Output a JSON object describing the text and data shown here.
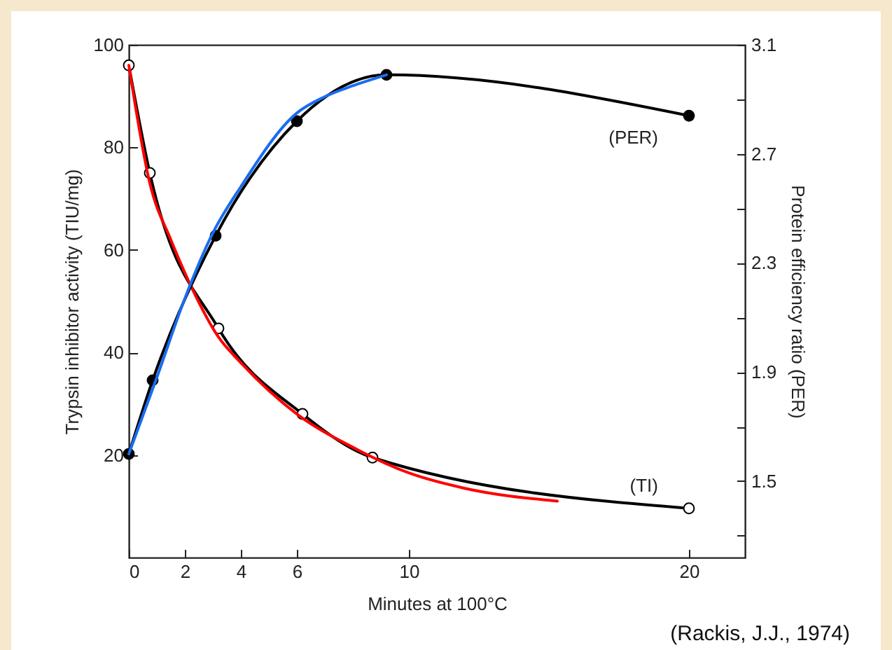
{
  "chart_data": {
    "type": "line",
    "xlabel": "Minutes at 100°C",
    "ylabel": "Trypsin inhibitor activity (TIU/mg)",
    "y2label": "Protein efficiency ratio (PER)",
    "xlim": [
      0,
      22
    ],
    "xticks": [
      0,
      2,
      4,
      6,
      10,
      20
    ],
    "ylim": [
      0,
      100
    ],
    "yticks": [
      20,
      40,
      60,
      80,
      100
    ],
    "y2lim": [
      1.22,
      3.1
    ],
    "y2ticks": [
      {
        "value": 1.3,
        "label": null
      },
      1.5,
      {
        "value": 1.7,
        "label": null
      },
      1.9,
      {
        "value": 2.1,
        "label": null
      },
      2.3,
      {
        "value": 2.5,
        "label": null
      },
      2.7,
      {
        "value": 2.9,
        "label": null
      },
      3.1
    ],
    "grid": false,
    "legend": false,
    "series": [
      {
        "name": "(TI)",
        "color": "#000000",
        "marker": "circle",
        "axis": "y",
        "x": [
          0,
          0.75,
          3.2,
          6.2,
          8.7,
          20
        ],
        "values": [
          96,
          75,
          44.7,
          28,
          19.5,
          9.6
        ]
      },
      {
        "name": "(PER)",
        "color": "#000000",
        "marker": "circle",
        "axis": "y2",
        "x": [
          0,
          0.85,
          3.1,
          6,
          9.2,
          20
        ],
        "values": [
          1.6,
          1.87,
          2.4,
          2.82,
          2.99,
          2.84
        ]
      },
      {
        "color": "#ff0000",
        "marker": "none",
        "axis": "y",
        "x": [
          0,
          0.75,
          1.5,
          2.3,
          3.2,
          4,
          6,
          8,
          10,
          12,
          15.3
        ],
        "values": [
          96,
          73,
          62,
          52,
          43,
          38,
          28,
          21.5,
          16.5,
          13.5,
          11
        ]
      },
      {
        "color": "#1a6cf0",
        "marker": "none",
        "axis": "y2",
        "x": [
          0,
          1,
          2,
          3,
          4,
          6,
          7,
          8,
          9.2
        ],
        "values": [
          1.6,
          1.88,
          2.17,
          2.41,
          2.58,
          2.85,
          2.91,
          2.95,
          2.99
        ]
      }
    ],
    "annotations": [
      "(Rackis, J.J., 1974)"
    ]
  }
}
